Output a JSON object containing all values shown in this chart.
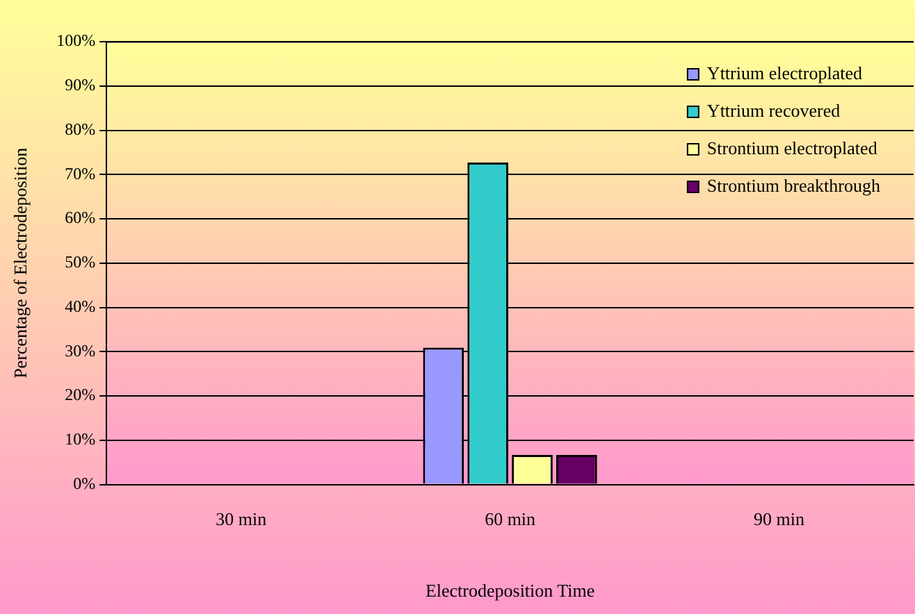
{
  "chart_data": {
    "type": "bar",
    "xlabel": "Electrodeposition Time",
    "ylabel": "Percentage of Electrodeposition",
    "categories": [
      "30 min",
      "60 min",
      "90 min"
    ],
    "series": [
      {
        "name": "Yttrium electroplated",
        "color": "#9999ff",
        "values": [
          null,
          30.9,
          null
        ]
      },
      {
        "name": "Yttrium recovered",
        "color": "#33cccc",
        "values": [
          null,
          72.7,
          null
        ]
      },
      {
        "name": "Strontium electroplated",
        "color": "#ffff99",
        "values": [
          null,
          6.7,
          null
        ]
      },
      {
        "name": "Strontium breakthrough",
        "color": "#660066",
        "values": [
          null,
          6.7,
          null
        ]
      }
    ],
    "ylim": [
      0,
      100
    ],
    "yticks": [
      {
        "value": 0,
        "label": "0%"
      },
      {
        "value": 10,
        "label": "10%"
      },
      {
        "value": 20,
        "label": "20%"
      },
      {
        "value": 30,
        "label": "30%"
      },
      {
        "value": 40,
        "label": "40%"
      },
      {
        "value": 50,
        "label": "50%"
      },
      {
        "value": 60,
        "label": "60%"
      },
      {
        "value": 70,
        "label": "70%"
      },
      {
        "value": 80,
        "label": "80%"
      },
      {
        "value": 90,
        "label": "90%"
      },
      {
        "value": 100,
        "label": "100%"
      }
    ],
    "grid": "y",
    "legend": "top right"
  }
}
